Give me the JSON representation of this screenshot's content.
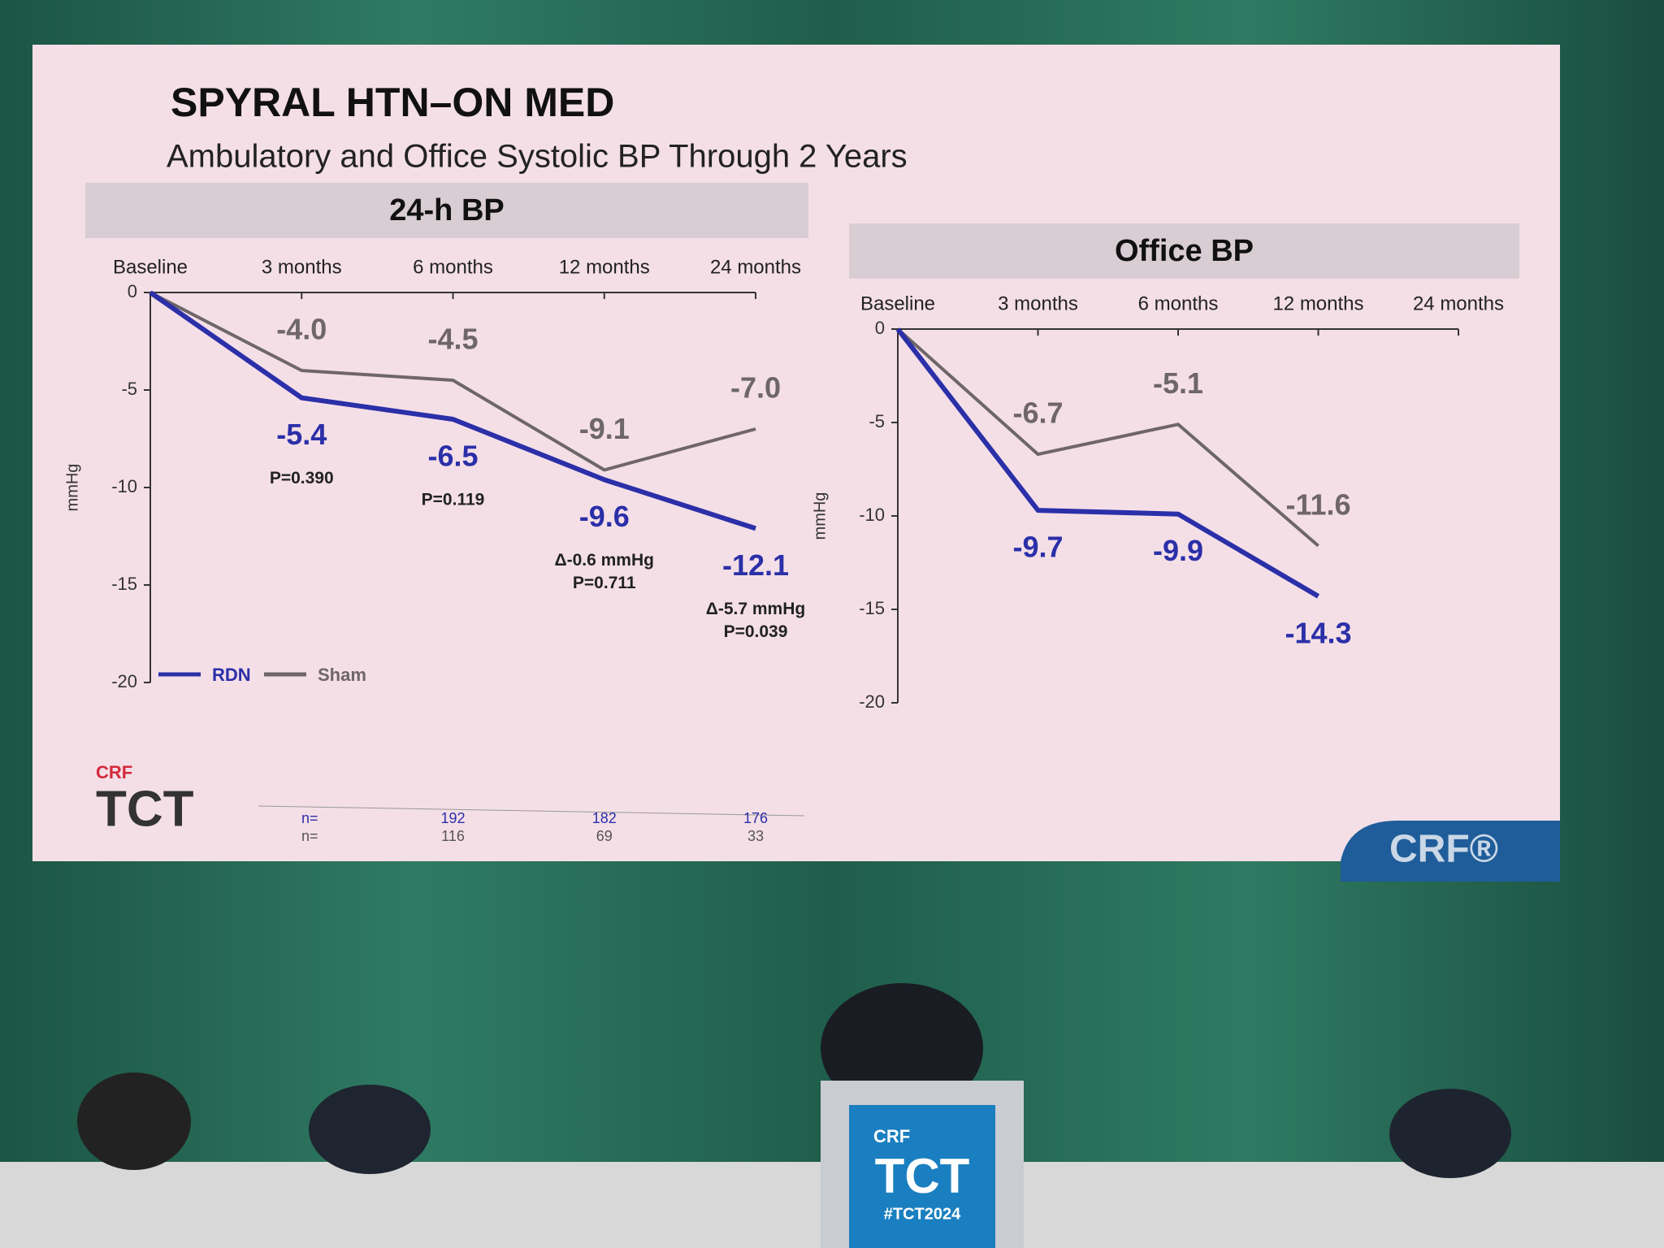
{
  "slide": {
    "title": "SPYRAL HTN–ON MED",
    "subtitle": "Ambulatory and Office Systolic BP Through 2 Years"
  },
  "chart_data": [
    {
      "type": "line",
      "title": "24-h BP",
      "ylabel": "mmHg",
      "categories": [
        "Baseline",
        "3 months",
        "6 months",
        "12 months",
        "24 months"
      ],
      "ylim": [
        -20,
        0
      ],
      "yticks": [
        -20,
        -15,
        -10,
        -5,
        0
      ],
      "legend": "lower left",
      "series": [
        {
          "name": "RDN",
          "color": "#2b2fa8",
          "values": [
            0,
            -5.4,
            -6.5,
            -9.6,
            -12.1
          ],
          "value_labels": [
            null,
            "-5.4",
            "-6.5",
            "-9.6",
            "-12.1"
          ]
        },
        {
          "name": "Sham",
          "color": "#6e6668",
          "values": [
            0,
            -4.0,
            -4.5,
            -9.1,
            -7.0
          ],
          "value_labels": [
            null,
            "-4.0",
            "-4.5",
            "-9.1",
            "-7.0"
          ]
        }
      ],
      "annotations": [
        null,
        [
          "P=0.390"
        ],
        [
          "P=0.119"
        ],
        [
          "Δ-0.6 mmHg",
          "P=0.711"
        ],
        [
          "Δ-5.7 mmHg",
          "P=0.039"
        ]
      ]
    },
    {
      "type": "line",
      "title": "Office BP",
      "ylabel": "mmHg",
      "categories": [
        "Baseline",
        "3 months",
        "6 months",
        "12 months",
        "24 months"
      ],
      "ylim": [
        -20,
        0
      ],
      "yticks": [
        -20,
        -15,
        -10,
        -5,
        0
      ],
      "series": [
        {
          "color": "#2b2fa8",
          "values": [
            0,
            -9.7,
            -9.9,
            -14.3,
            null
          ],
          "value_labels": [
            null,
            "-9.7",
            "-9.9",
            "-14.3",
            null
          ]
        },
        {
          "color": "#6e6668",
          "values": [
            0,
            -6.7,
            -5.1,
            -11.6,
            null
          ],
          "value_labels": [
            null,
            "-6.7",
            "-5.1",
            "-11.6",
            null
          ]
        }
      ]
    }
  ],
  "n_table": {
    "rows": [
      {
        "label": "n=",
        "values": [
          "192",
          "182",
          "176"
        ]
      },
      {
        "label": "n=",
        "values": [
          "116",
          "69",
          "33"
        ]
      }
    ]
  },
  "branding": {
    "crf": "CRF",
    "tct": "TCT",
    "crf_mark": "CRF®",
    "hashtag": "#TCT2024"
  }
}
